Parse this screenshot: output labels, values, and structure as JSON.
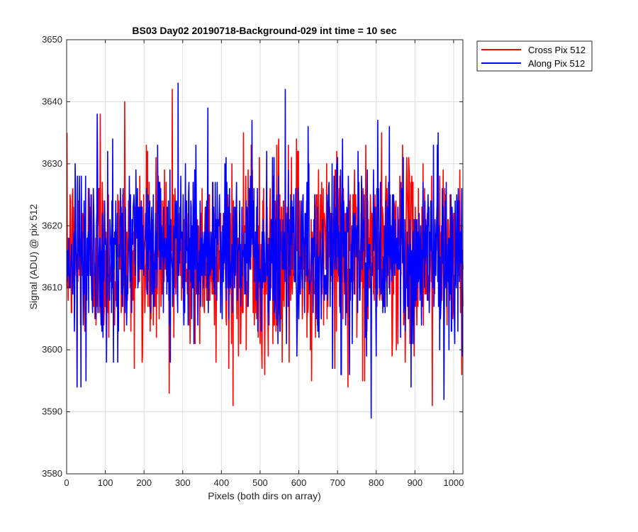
{
  "chart_data": {
    "type": "line",
    "title": "BS03 Day02 20190718-Background-029 int time = 10 sec",
    "xlabel": "Pixels (both dirs on array)",
    "ylabel": "Signal (ADU) @ pix 512",
    "xlim": [
      0,
      1024
    ],
    "ylim": [
      3580,
      3650
    ],
    "xticks": [
      0,
      100,
      200,
      300,
      400,
      500,
      600,
      700,
      800,
      900,
      1000
    ],
    "yticks": [
      3580,
      3590,
      3600,
      3610,
      3620,
      3630,
      3640,
      3650
    ],
    "grid": true,
    "legend": "outside-top-right",
    "x": {
      "start": 1,
      "end": 1024,
      "step": 1
    },
    "series": [
      {
        "name": "Cross Pix 512",
        "color": "#ff0000",
        "mean": 3615.5,
        "std": 7,
        "min": 3591,
        "max": 3642,
        "peaks": [
          [
            27,
            3594
          ],
          [
            87,
            3638
          ],
          [
            150,
            3640
          ],
          [
            265,
            3593
          ],
          [
            273,
            3642
          ],
          [
            430,
            3591
          ],
          [
            575,
            3598
          ],
          [
            727,
            3594
          ],
          [
            770,
            3595
          ],
          [
            868,
            3633
          ],
          [
            945,
            3591
          ]
        ]
      },
      {
        "name": "Along Pix 512",
        "color": "#0000ff",
        "mean": 3615.5,
        "std": 7,
        "min": 3589,
        "max": 3643,
        "peaks": [
          [
            50,
            3595
          ],
          [
            288,
            3643
          ],
          [
            365,
            3639
          ],
          [
            565,
            3642
          ],
          [
            731,
            3596
          ],
          [
            787,
            3589
          ],
          [
            800,
            3599
          ],
          [
            975,
            3592
          ],
          [
            1022,
            3599
          ]
        ]
      }
    ]
  }
}
